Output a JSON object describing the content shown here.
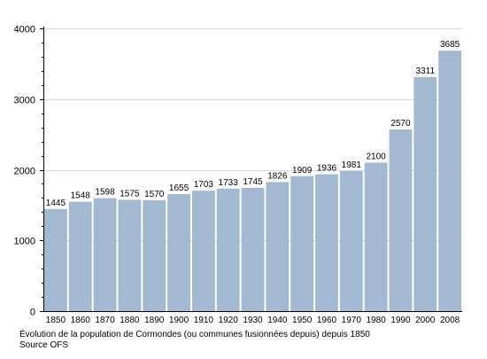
{
  "chart_data": {
    "type": "bar",
    "categories": [
      "1850",
      "1860",
      "1870",
      "1880",
      "1890",
      "1900",
      "1910",
      "1920",
      "1930",
      "1940",
      "1950",
      "1960",
      "1970",
      "1980",
      "1990",
      "2000",
      "2008"
    ],
    "values": [
      1445,
      1548,
      1598,
      1575,
      1570,
      1655,
      1703,
      1733,
      1745,
      1826,
      1909,
      1936,
      1981,
      2100,
      2570,
      3311,
      3685
    ],
    "ylim": [
      0,
      4000
    ],
    "yticks": [
      0,
      1000,
      2000,
      3000,
      4000
    ],
    "grid": true,
    "bar_color": "#a3b8d1",
    "caption": [
      "Évolution de la population de Cormondes (ou communes fusionnées depuis) depuis 1850",
      "Source OFS"
    ]
  }
}
